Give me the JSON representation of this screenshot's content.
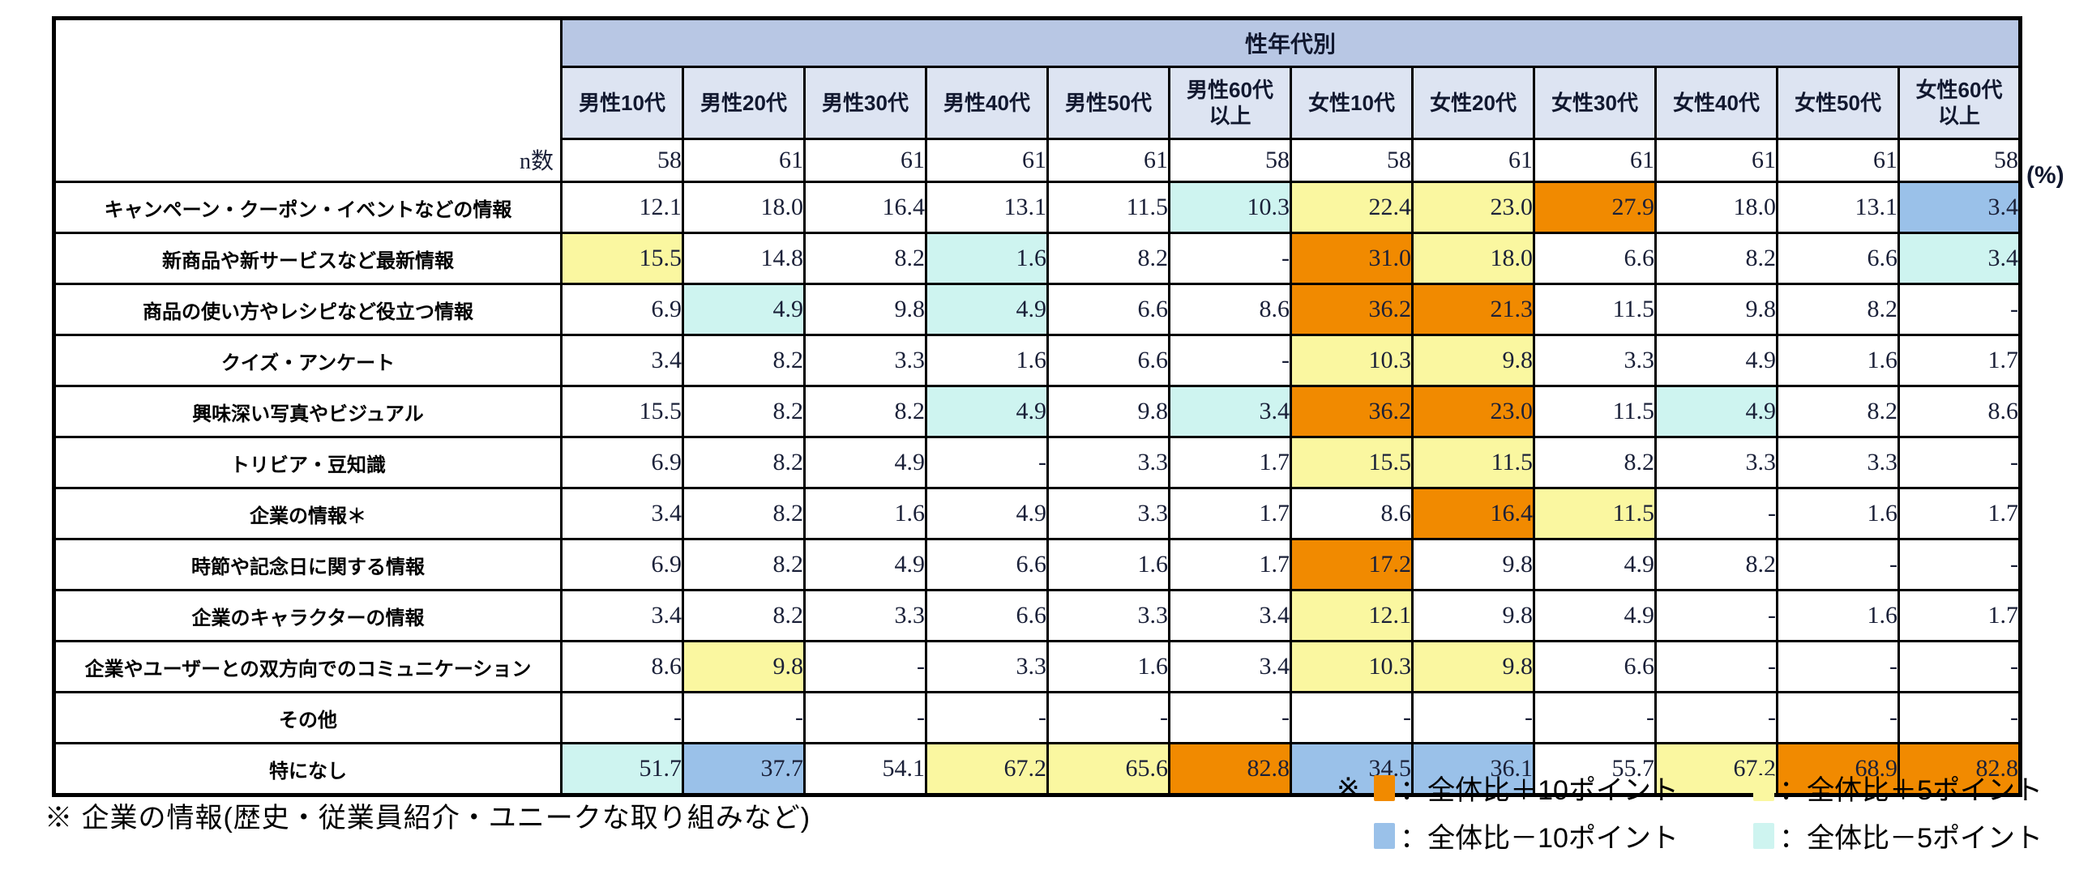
{
  "chart_data": {
    "type": "table",
    "title": "性年代別",
    "unit": "(%)",
    "n_label": "n数",
    "columns": [
      "男性10代",
      "男性20代",
      "男性30代",
      "男性40代",
      "男性50代",
      "男性60代\n以上",
      "女性10代",
      "女性20代",
      "女性30代",
      "女性40代",
      "女性50代",
      "女性60代\n以上"
    ],
    "n_values": [
      "58",
      "61",
      "61",
      "61",
      "61",
      "58",
      "58",
      "61",
      "61",
      "61",
      "61",
      "58"
    ],
    "rows": [
      {
        "label": "キャンペーン・クーポン・イベントなどの情報",
        "values": [
          "12.1",
          "18.0",
          "16.4",
          "13.1",
          "11.5",
          "10.3",
          "22.4",
          "23.0",
          "27.9",
          "18.0",
          "13.1",
          "3.4"
        ],
        "highlights": [
          "",
          "",
          "",
          "",
          "",
          "m5",
          "p5",
          "p5",
          "p10",
          "",
          "",
          "m10"
        ]
      },
      {
        "label": "新商品や新サービスなど最新情報",
        "values": [
          "15.5",
          "14.8",
          "8.2",
          "1.6",
          "8.2",
          "-",
          "31.0",
          "18.0",
          "6.6",
          "8.2",
          "6.6",
          "3.4"
        ],
        "highlights": [
          "p5",
          "",
          "",
          "m5",
          "",
          "",
          "p10",
          "p5",
          "",
          "",
          "",
          "m5"
        ]
      },
      {
        "label": "商品の使い方やレシピなど役立つ情報",
        "values": [
          "6.9",
          "4.9",
          "9.8",
          "4.9",
          "6.6",
          "8.6",
          "36.2",
          "21.3",
          "11.5",
          "9.8",
          "8.2",
          "-"
        ],
        "highlights": [
          "",
          "m5",
          "",
          "m5",
          "",
          "",
          "p10",
          "p10",
          "",
          "",
          "",
          ""
        ]
      },
      {
        "label": "クイズ・アンケート",
        "values": [
          "3.4",
          "8.2",
          "3.3",
          "1.6",
          "6.6",
          "-",
          "10.3",
          "9.8",
          "3.3",
          "4.9",
          "1.6",
          "1.7"
        ],
        "highlights": [
          "",
          "",
          "",
          "",
          "",
          "",
          "p5",
          "p5",
          "",
          "",
          "",
          ""
        ]
      },
      {
        "label": "興味深い写真やビジュアル",
        "values": [
          "15.5",
          "8.2",
          "8.2",
          "4.9",
          "9.8",
          "3.4",
          "36.2",
          "23.0",
          "11.5",
          "4.9",
          "8.2",
          "8.6"
        ],
        "highlights": [
          "",
          "",
          "",
          "m5",
          "",
          "m5",
          "p10",
          "p10",
          "",
          "m5",
          "",
          ""
        ]
      },
      {
        "label": "トリビア・豆知識",
        "values": [
          "6.9",
          "8.2",
          "4.9",
          "-",
          "3.3",
          "1.7",
          "15.5",
          "11.5",
          "8.2",
          "3.3",
          "3.3",
          "-"
        ],
        "highlights": [
          "",
          "",
          "",
          "",
          "",
          "",
          "p5",
          "p5",
          "",
          "",
          "",
          ""
        ]
      },
      {
        "label": "企業の情報＊",
        "values": [
          "3.4",
          "8.2",
          "1.6",
          "4.9",
          "3.3",
          "1.7",
          "8.6",
          "16.4",
          "11.5",
          "-",
          "1.6",
          "1.7"
        ],
        "highlights": [
          "",
          "",
          "",
          "",
          "",
          "",
          "",
          "p10",
          "p5",
          "",
          "",
          ""
        ]
      },
      {
        "label": "時節や記念日に関する情報",
        "values": [
          "6.9",
          "8.2",
          "4.9",
          "6.6",
          "1.6",
          "1.7",
          "17.2",
          "9.8",
          "4.9",
          "8.2",
          "-",
          "-"
        ],
        "highlights": [
          "",
          "",
          "",
          "",
          "",
          "",
          "p10",
          "",
          "",
          "",
          "",
          ""
        ]
      },
      {
        "label": "企業のキャラクターの情報",
        "values": [
          "3.4",
          "8.2",
          "3.3",
          "6.6",
          "3.3",
          "3.4",
          "12.1",
          "9.8",
          "4.9",
          "-",
          "1.6",
          "1.7"
        ],
        "highlights": [
          "",
          "",
          "",
          "",
          "",
          "",
          "p5",
          "",
          "",
          "",
          "",
          ""
        ]
      },
      {
        "label": "企業やユーザーとの双方向でのコミュニケーション",
        "values": [
          "8.6",
          "9.8",
          "-",
          "3.3",
          "1.6",
          "3.4",
          "10.3",
          "9.8",
          "6.6",
          "-",
          "-",
          "-"
        ],
        "highlights": [
          "",
          "p5",
          "",
          "",
          "",
          "",
          "p5",
          "p5",
          "",
          "",
          "",
          ""
        ]
      },
      {
        "label": "その他",
        "values": [
          "-",
          "-",
          "-",
          "-",
          "-",
          "-",
          "-",
          "-",
          "-",
          "-",
          "-",
          "-"
        ],
        "highlights": [
          "",
          "",
          "",
          "",
          "",
          "",
          "",
          "",
          "",
          "",
          "",
          ""
        ]
      },
      {
        "label": "特になし",
        "values": [
          "51.7",
          "37.7",
          "54.1",
          "67.2",
          "65.6",
          "82.8",
          "34.5",
          "36.1",
          "55.7",
          "67.2",
          "68.9",
          "82.8"
        ],
        "highlights": [
          "m5",
          "m10",
          "",
          "p5",
          "p5",
          "p10",
          "m10",
          "m10",
          "",
          "p5",
          "p10",
          "p10"
        ]
      }
    ]
  },
  "footnote": "※ 企業の情報(歴史・従業員紹介・ユニークな取り組みなど)",
  "legend": {
    "note_mark": "※",
    "items": [
      {
        "key": "p10",
        "label": "：全体比＋10ポイント"
      },
      {
        "key": "p5",
        "label": "：全体比＋5ポイント"
      },
      {
        "key": "m10",
        "label": "：全体比－10ポイント"
      },
      {
        "key": "m5",
        "label": "：全体比－5ポイント"
      }
    ]
  },
  "colors": {
    "p10": "#F18A00",
    "p5": "#FAF7A0",
    "m10": "#9AC1E9",
    "m5": "#CEF4F0",
    "header_band": "#B8C7E4",
    "header_cell": "#DDE4F2"
  }
}
